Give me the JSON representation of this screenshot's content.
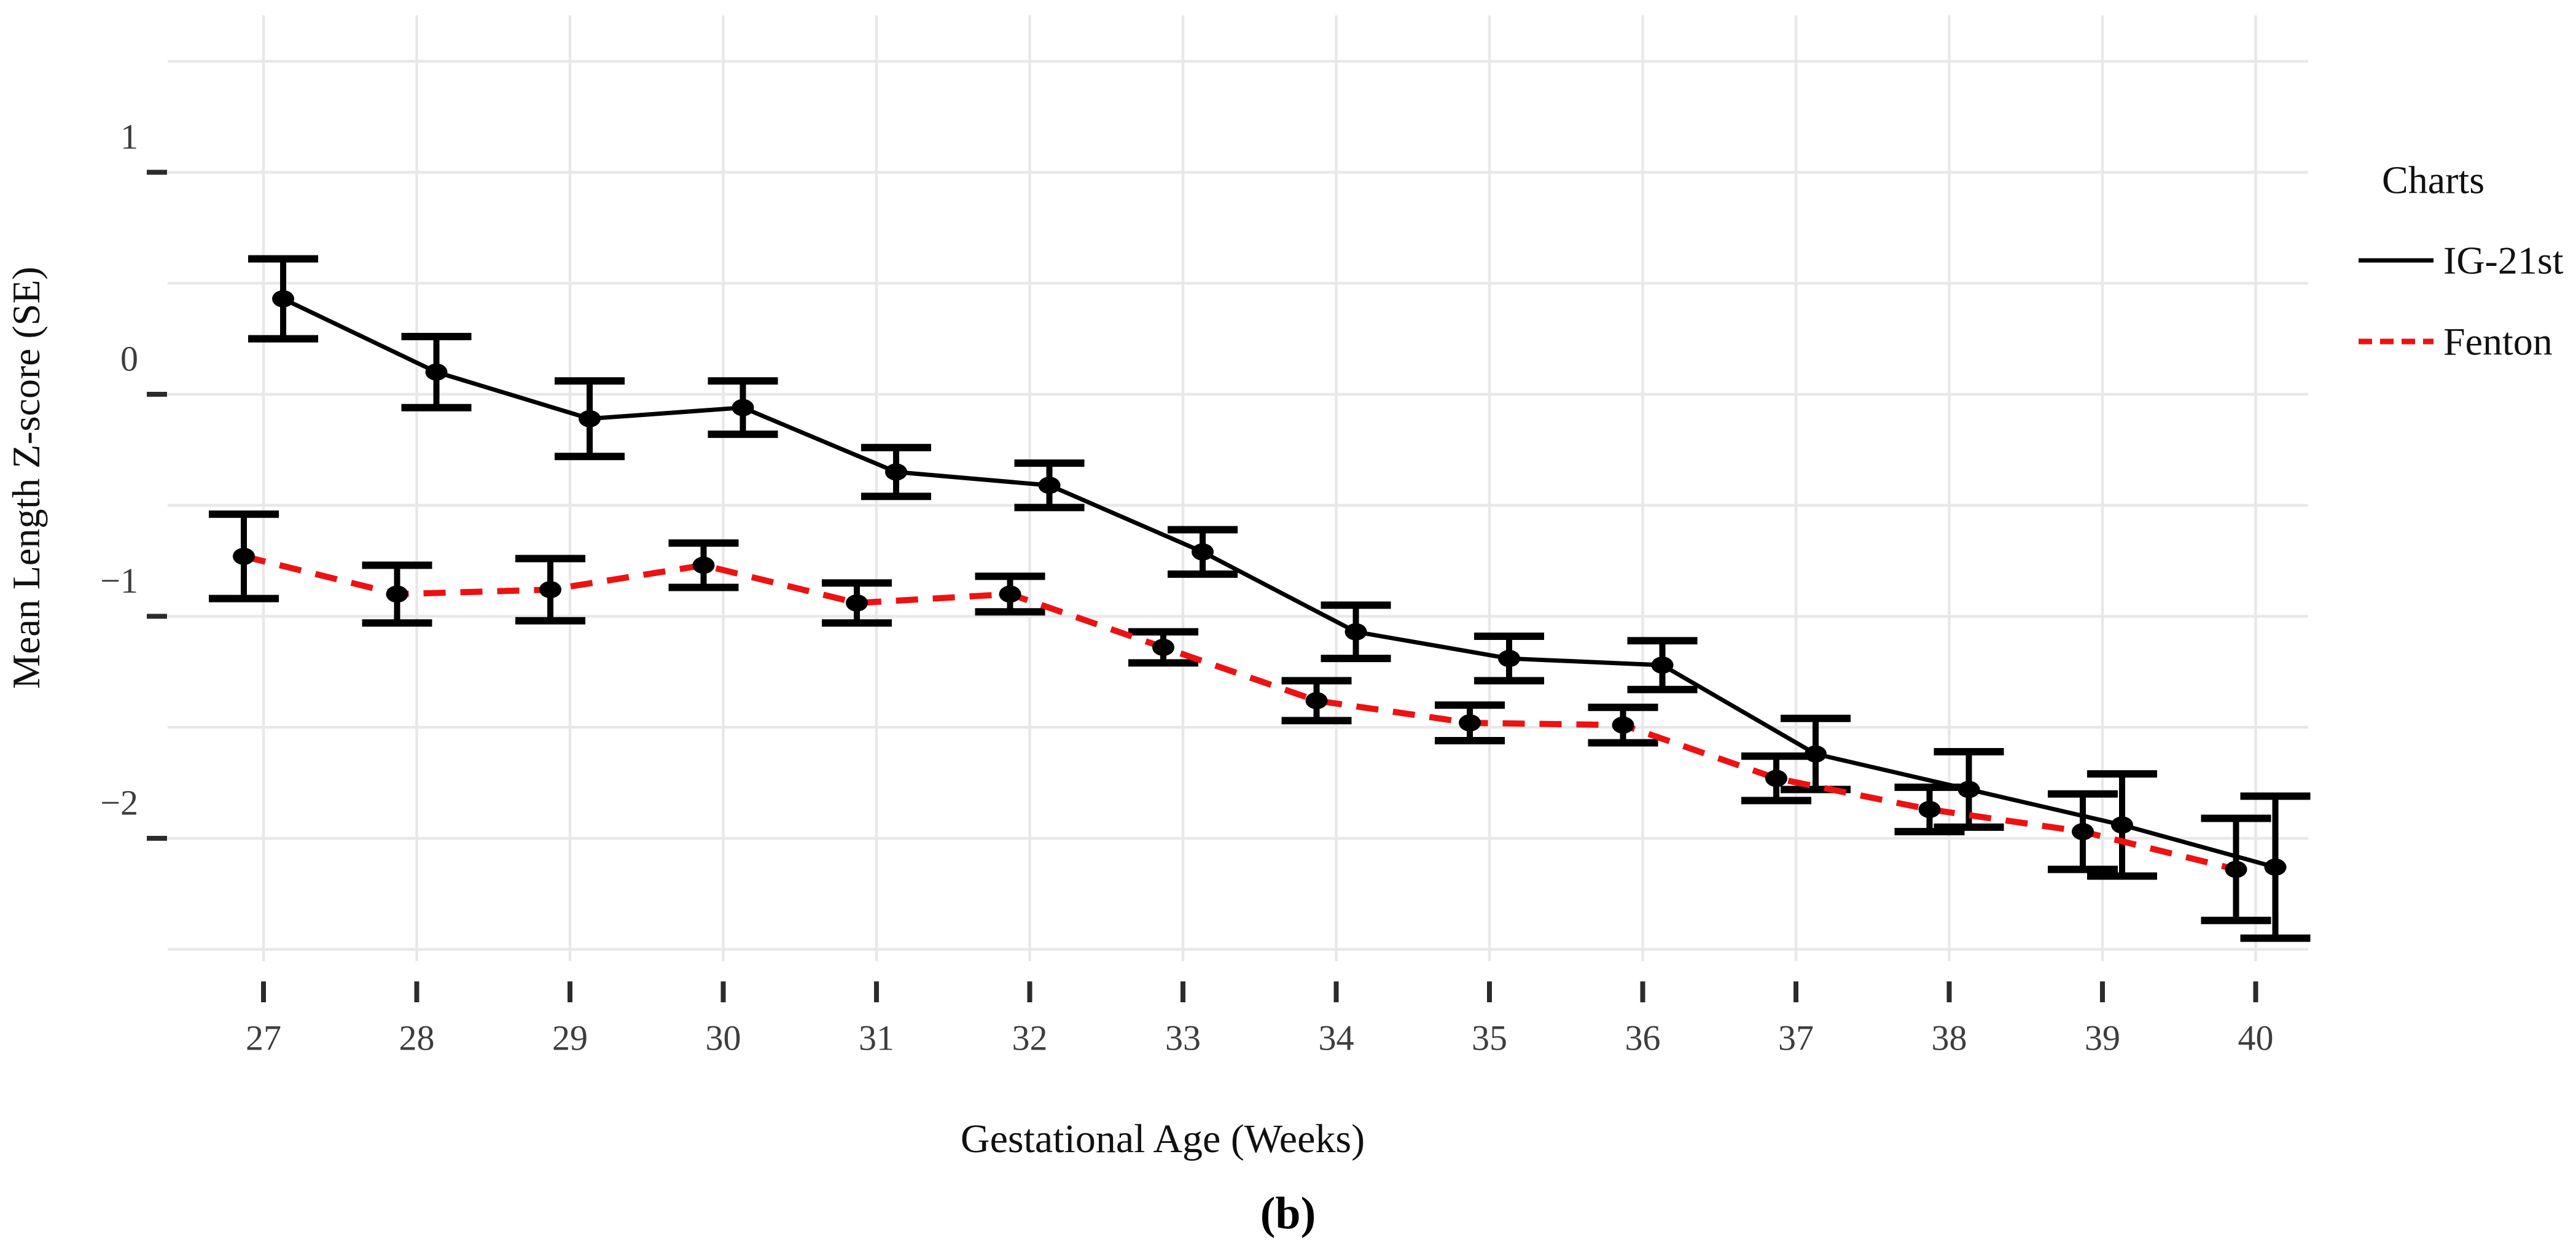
{
  "figure": {
    "caption": "(b)"
  },
  "chart_data": {
    "type": "line",
    "title": "",
    "xlabel": "Gestational Age (Weeks)",
    "ylabel": "Mean Length Z-score (SE)",
    "x": [
      27,
      28,
      29,
      30,
      31,
      32,
      33,
      34,
      35,
      36,
      37,
      38,
      39,
      40
    ],
    "xlim": [
      26.35,
      40.4
    ],
    "ylim": [
      -2.55,
      1.7
    ],
    "y_axis": {
      "ticks": [
        1,
        0,
        -1,
        -2
      ],
      "tick_labels": [
        "1",
        "0",
        "−1",
        "−2"
      ],
      "minor_step": 0.5
    },
    "grid": {
      "show": true,
      "color": "#e8e8e8"
    },
    "legend_title": "Charts",
    "legend_position": "right",
    "error_bar_color": "#000000",
    "marker_color": "#000000",
    "series": [
      {
        "name": "IG-21st",
        "color": "#000000",
        "style": "solid",
        "values": [
          0.43,
          0.1,
          -0.11,
          -0.06,
          -0.35,
          -0.41,
          -0.71,
          -1.07,
          -1.19,
          -1.22,
          -1.62,
          -1.78,
          -1.94,
          -2.13
        ],
        "se": [
          0.18,
          0.16,
          0.17,
          0.12,
          0.11,
          0.1,
          0.1,
          0.12,
          0.1,
          0.11,
          0.16,
          0.17,
          0.23,
          0.32
        ]
      },
      {
        "name": "Fenton",
        "color": "#ee1111",
        "style": "dashed",
        "values": [
          -0.73,
          -0.9,
          -0.88,
          -0.77,
          -0.94,
          -0.9,
          -1.14,
          -1.38,
          -1.48,
          -1.49,
          -1.73,
          -1.87,
          -1.97,
          -2.14
        ],
        "se": [
          0.19,
          0.13,
          0.14,
          0.1,
          0.09,
          0.08,
          0.07,
          0.09,
          0.08,
          0.08,
          0.1,
          0.1,
          0.17,
          0.23
        ]
      }
    ]
  }
}
